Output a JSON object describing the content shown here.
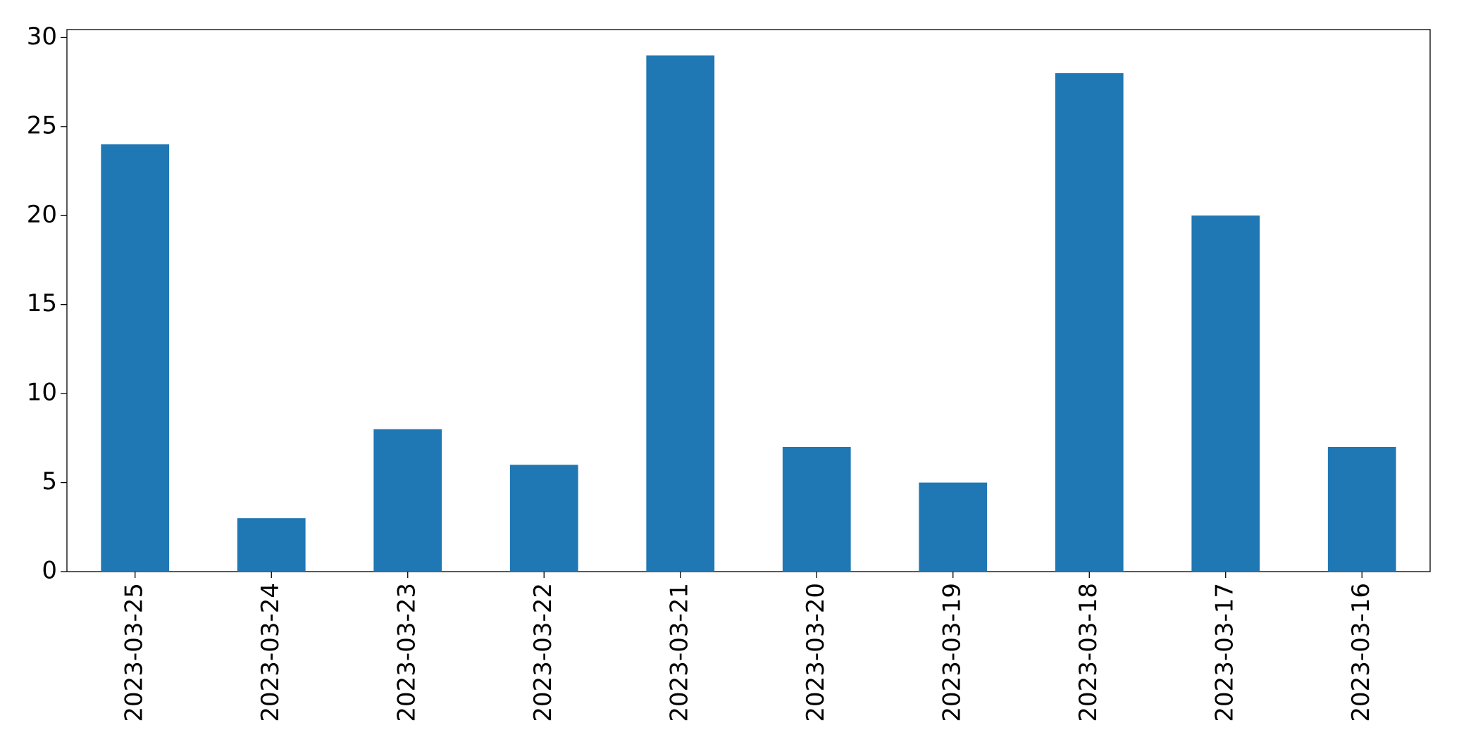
{
  "chart_data": {
    "type": "bar",
    "categories": [
      "2023-03-25",
      "2023-03-24",
      "2023-03-23",
      "2023-03-22",
      "2023-03-21",
      "2023-03-20",
      "2023-03-19",
      "2023-03-18",
      "2023-03-17",
      "2023-03-16"
    ],
    "values": [
      24,
      3,
      8,
      6,
      29,
      7,
      5,
      28,
      20,
      7
    ],
    "color": "#1f77b4",
    "ylim": [
      0,
      30.45
    ],
    "yticks": [
      0,
      5,
      10,
      15,
      20,
      25,
      30
    ],
    "grid": false
  }
}
